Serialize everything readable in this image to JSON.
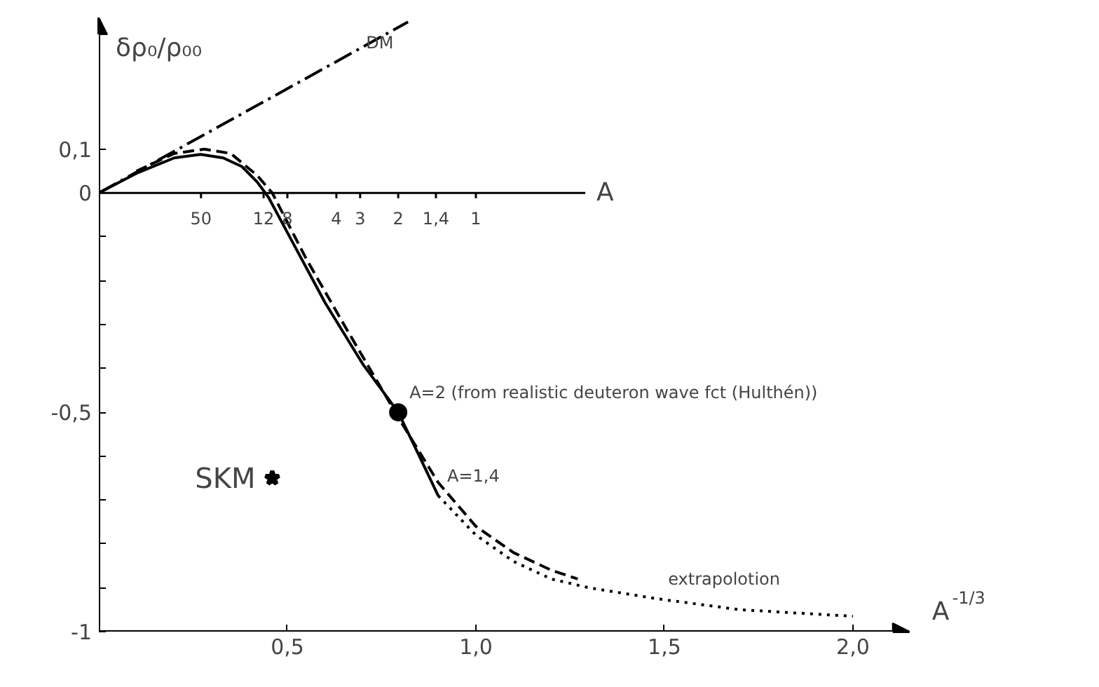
{
  "chart_data": {
    "type": "line",
    "xlabel": "A$^{-1/3}$",
    "ylabel": "δρ₀/ρ₀₀",
    "xlim": [
      0,
      2.15
    ],
    "xticks": [
      {
        "value": 0.5,
        "label": "0,5"
      },
      {
        "value": 1.0,
        "label": "1,0"
      },
      {
        "value": 1.5,
        "label": "1,5"
      },
      {
        "value": 2.0,
        "label": "2,0"
      }
    ],
    "ref_lines": [
      {
        "axis": "y",
        "value": 0,
        "label": "A",
        "color": "#000000"
      }
    ],
    "ylim": [
      -1,
      0.4
    ],
    "yticks": [
      {
        "value": 0.1,
        "label": "0,1"
      },
      0,
      {
        "value": -0.1,
        "label": null
      },
      {
        "value": -0.2,
        "label": null
      },
      {
        "value": -0.3,
        "label": null
      },
      {
        "value": -0.4,
        "label": null
      },
      {
        "value": -0.5,
        "label": "-0,5"
      },
      {
        "value": -0.6,
        "label": null
      },
      {
        "value": -0.7,
        "label": null
      },
      {
        "value": -0.8,
        "label": null
      },
      {
        "value": -0.9,
        "label": null
      },
      {
        "value": -1,
        "label": "-1"
      }
    ],
    "grid": false,
    "series": [
      {
        "name": "DM",
        "color": "#000000",
        "line_style": "dashdot",
        "marker": "none",
        "x": [
          0,
          0.82
        ],
        "values": [
          0,
          0.39
        ]
      },
      {
        "color": "#000000",
        "line_style": "solid",
        "marker": "none",
        "x": [
          0,
          0.1,
          0.2,
          0.27,
          0.33,
          0.38,
          0.42,
          0.45,
          0.5,
          0.6,
          0.7,
          0.794,
          0.85,
          0.9
        ],
        "values": [
          0,
          0.045,
          0.08,
          0.088,
          0.08,
          0.06,
          0.025,
          -0.01,
          -0.09,
          -0.25,
          -0.39,
          -0.5,
          -0.6,
          -0.69
        ]
      },
      {
        "color": "#000000",
        "line_style": "dashed",
        "marker": "none",
        "x": [
          0.1,
          0.2,
          0.28,
          0.35,
          0.42,
          0.46,
          0.55,
          0.65,
          0.8,
          0.9,
          1.0,
          1.1,
          1.2,
          1.27
        ],
        "values": [
          0.05,
          0.09,
          0.1,
          0.09,
          0.04,
          0,
          -0.15,
          -0.3,
          -0.52,
          -0.66,
          -0.76,
          -0.82,
          -0.86,
          -0.88
        ]
      },
      {
        "color": "#000000",
        "line_style": "dotted",
        "marker": "none",
        "x": [
          0.9,
          1.0,
          1.1,
          1.2,
          1.3,
          1.48,
          1.7,
          2.0
        ],
        "values": [
          -0.69,
          -0.78,
          -0.84,
          -0.88,
          -0.9,
          -0.925,
          -0.95,
          -0.965
        ]
      },
      {
        "type": "scatter",
        "name": "SKM",
        "color": "#000000",
        "marker": "star",
        "x": [
          0.46
        ],
        "values": [
          -0.65
        ]
      },
      {
        "type": "scatter",
        "color": "#000000",
        "marker": "circle",
        "x": [
          0.794
        ],
        "values": [
          -0.5
        ]
      }
    ],
    "annotations": [
      {
        "text": "50",
        "x": 0.271,
        "y": 0
      },
      {
        "text": "12",
        "x": 0.437,
        "y": 0
      },
      {
        "text": "8",
        "x": 0.5,
        "y": 0
      },
      {
        "text": "4",
        "x": 0.63,
        "y": 0
      },
      {
        "text": "3",
        "x": 0.693,
        "y": 0
      },
      {
        "text": "2",
        "x": 0.794,
        "y": 0
      },
      {
        "text": "1,4",
        "x": 0.894,
        "y": 0
      },
      {
        "text": "1",
        "x": 1.0,
        "y": 0
      },
      {
        "text": "A=2 (from realistic deuteron wave fct (Hulthén))",
        "x": 0.794,
        "y": -0.5
      },
      {
        "text": "A=1,4",
        "x": 0.894,
        "y": -0.69
      },
      {
        "text": "extrapolotion",
        "x": 1.48,
        "y": -0.925
      }
    ]
  }
}
